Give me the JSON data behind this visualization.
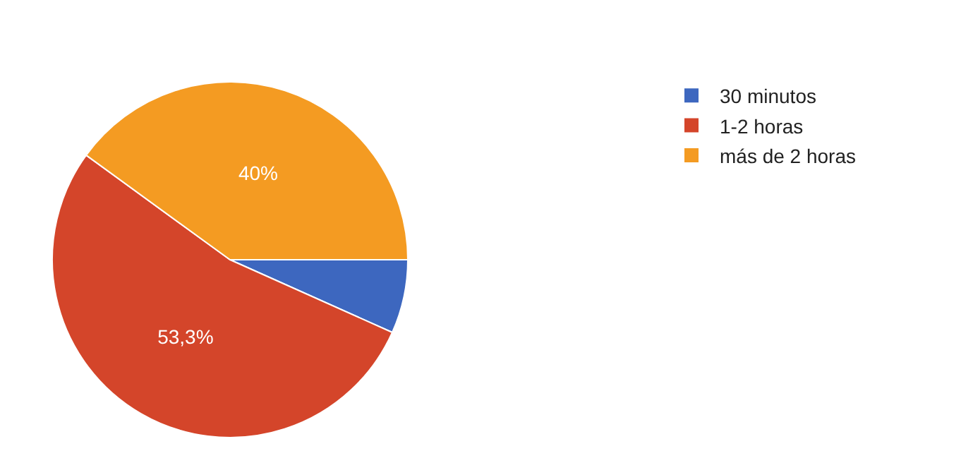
{
  "chart_data": {
    "type": "pie",
    "categories": [
      "30 minutos",
      "1-2 horas",
      "más de 2 horas"
    ],
    "values": [
      6.7,
      53.3,
      40
    ],
    "colors": [
      "#3d67bf",
      "#d4452a",
      "#f49b22"
    ],
    "value_labels": [
      null,
      "53,3%",
      "40%"
    ],
    "legend": "right"
  }
}
